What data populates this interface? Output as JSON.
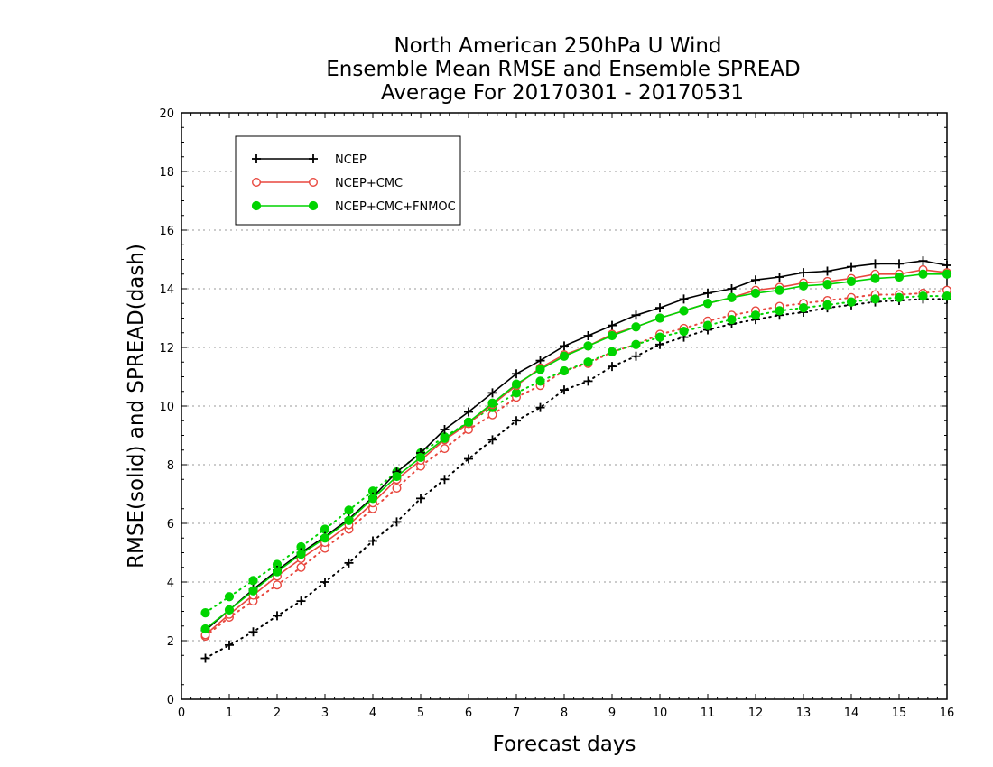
{
  "chart_data": {
    "type": "line",
    "title_lines": [
      "North American 250hPa U Wind",
      "Ensemble Mean RMSE and Ensemble SPREAD",
      "Average For 20170301 - 20170531"
    ],
    "xlabel": "Forecast days",
    "ylabel": "RMSE(solid) and SPREAD(dash)",
    "xlim": [
      0,
      16
    ],
    "ylim": [
      0,
      20
    ],
    "x_ticks": [
      "0",
      "1",
      "2",
      "3",
      "4",
      "5",
      "6",
      "7",
      "8",
      "9",
      "10",
      "11",
      "12",
      "13",
      "14",
      "15",
      "16"
    ],
    "y_ticks": [
      "0",
      "2",
      "4",
      "6",
      "8",
      "10",
      "12",
      "14",
      "16",
      "18",
      "20"
    ],
    "grid": true,
    "legend_position": "top-left",
    "x": [
      0.5,
      1,
      1.5,
      2,
      2.5,
      3,
      3.5,
      4,
      4.5,
      5,
      5.5,
      6,
      6.5,
      7,
      7.5,
      8,
      8.5,
      9,
      9.5,
      10,
      10.5,
      11,
      11.5,
      12,
      12.5,
      13,
      13.5,
      14,
      14.5,
      15,
      15.5,
      16
    ],
    "series": [
      {
        "name": "NCEP",
        "kind": "rmse",
        "style": "solid",
        "color": "#000000",
        "marker": "plus",
        "values": [
          2.35,
          3.05,
          3.75,
          4.4,
          5.0,
          5.55,
          6.15,
          6.9,
          7.75,
          8.4,
          9.2,
          9.8,
          10.45,
          11.1,
          11.55,
          12.05,
          12.4,
          12.75,
          13.1,
          13.35,
          13.65,
          13.85,
          14.0,
          14.3,
          14.4,
          14.55,
          14.6,
          14.75,
          14.85,
          14.85,
          14.95,
          14.8
        ]
      },
      {
        "name": "NCEP+CMC",
        "kind": "rmse",
        "style": "solid",
        "color": "#e8473e",
        "marker": "open-circle",
        "values": [
          2.2,
          2.9,
          3.55,
          4.2,
          4.8,
          5.35,
          5.95,
          6.7,
          7.5,
          8.15,
          8.85,
          9.4,
          10.05,
          10.7,
          11.3,
          11.75,
          12.05,
          12.45,
          12.7,
          13.0,
          13.25,
          13.5,
          13.7,
          13.95,
          14.05,
          14.2,
          14.25,
          14.35,
          14.5,
          14.5,
          14.65,
          14.55
        ]
      },
      {
        "name": "NCEP+CMC+FNMOC",
        "kind": "rmse",
        "style": "solid",
        "color": "#00d400",
        "marker": "filled-circle",
        "values": [
          2.4,
          3.05,
          3.7,
          4.35,
          4.95,
          5.5,
          6.1,
          6.85,
          7.6,
          8.25,
          8.9,
          9.45,
          10.1,
          10.75,
          11.25,
          11.7,
          12.05,
          12.4,
          12.7,
          13.0,
          13.25,
          13.5,
          13.7,
          13.85,
          13.95,
          14.1,
          14.15,
          14.25,
          14.35,
          14.4,
          14.5,
          14.5
        ]
      },
      {
        "kind": "spread",
        "style": "dotted",
        "color": "#000000",
        "marker": "plus",
        "values": [
          1.4,
          1.85,
          2.3,
          2.85,
          3.35,
          4.0,
          4.65,
          5.4,
          6.05,
          6.85,
          7.5,
          8.2,
          8.85,
          9.5,
          9.95,
          10.55,
          10.85,
          11.35,
          11.7,
          12.1,
          12.35,
          12.6,
          12.8,
          12.95,
          13.1,
          13.2,
          13.35,
          13.45,
          13.55,
          13.6,
          13.65,
          13.65
        ]
      },
      {
        "kind": "spread",
        "style": "dotted",
        "color": "#e8473e",
        "marker": "open-circle",
        "values": [
          2.15,
          2.8,
          3.35,
          3.9,
          4.5,
          5.15,
          5.8,
          6.5,
          7.2,
          7.95,
          8.55,
          9.2,
          9.7,
          10.3,
          10.7,
          11.2,
          11.45,
          11.85,
          12.1,
          12.45,
          12.65,
          12.9,
          13.1,
          13.25,
          13.4,
          13.5,
          13.6,
          13.7,
          13.8,
          13.8,
          13.85,
          13.95
        ]
      },
      {
        "kind": "spread",
        "style": "dotted",
        "color": "#00d400",
        "marker": "filled-circle",
        "values": [
          2.95,
          3.5,
          4.05,
          4.6,
          5.2,
          5.8,
          6.45,
          7.1,
          7.75,
          8.4,
          8.95,
          9.45,
          9.95,
          10.45,
          10.85,
          11.2,
          11.5,
          11.85,
          12.1,
          12.35,
          12.55,
          12.75,
          12.95,
          13.1,
          13.25,
          13.35,
          13.45,
          13.55,
          13.65,
          13.7,
          13.75,
          13.75
        ]
      }
    ]
  }
}
